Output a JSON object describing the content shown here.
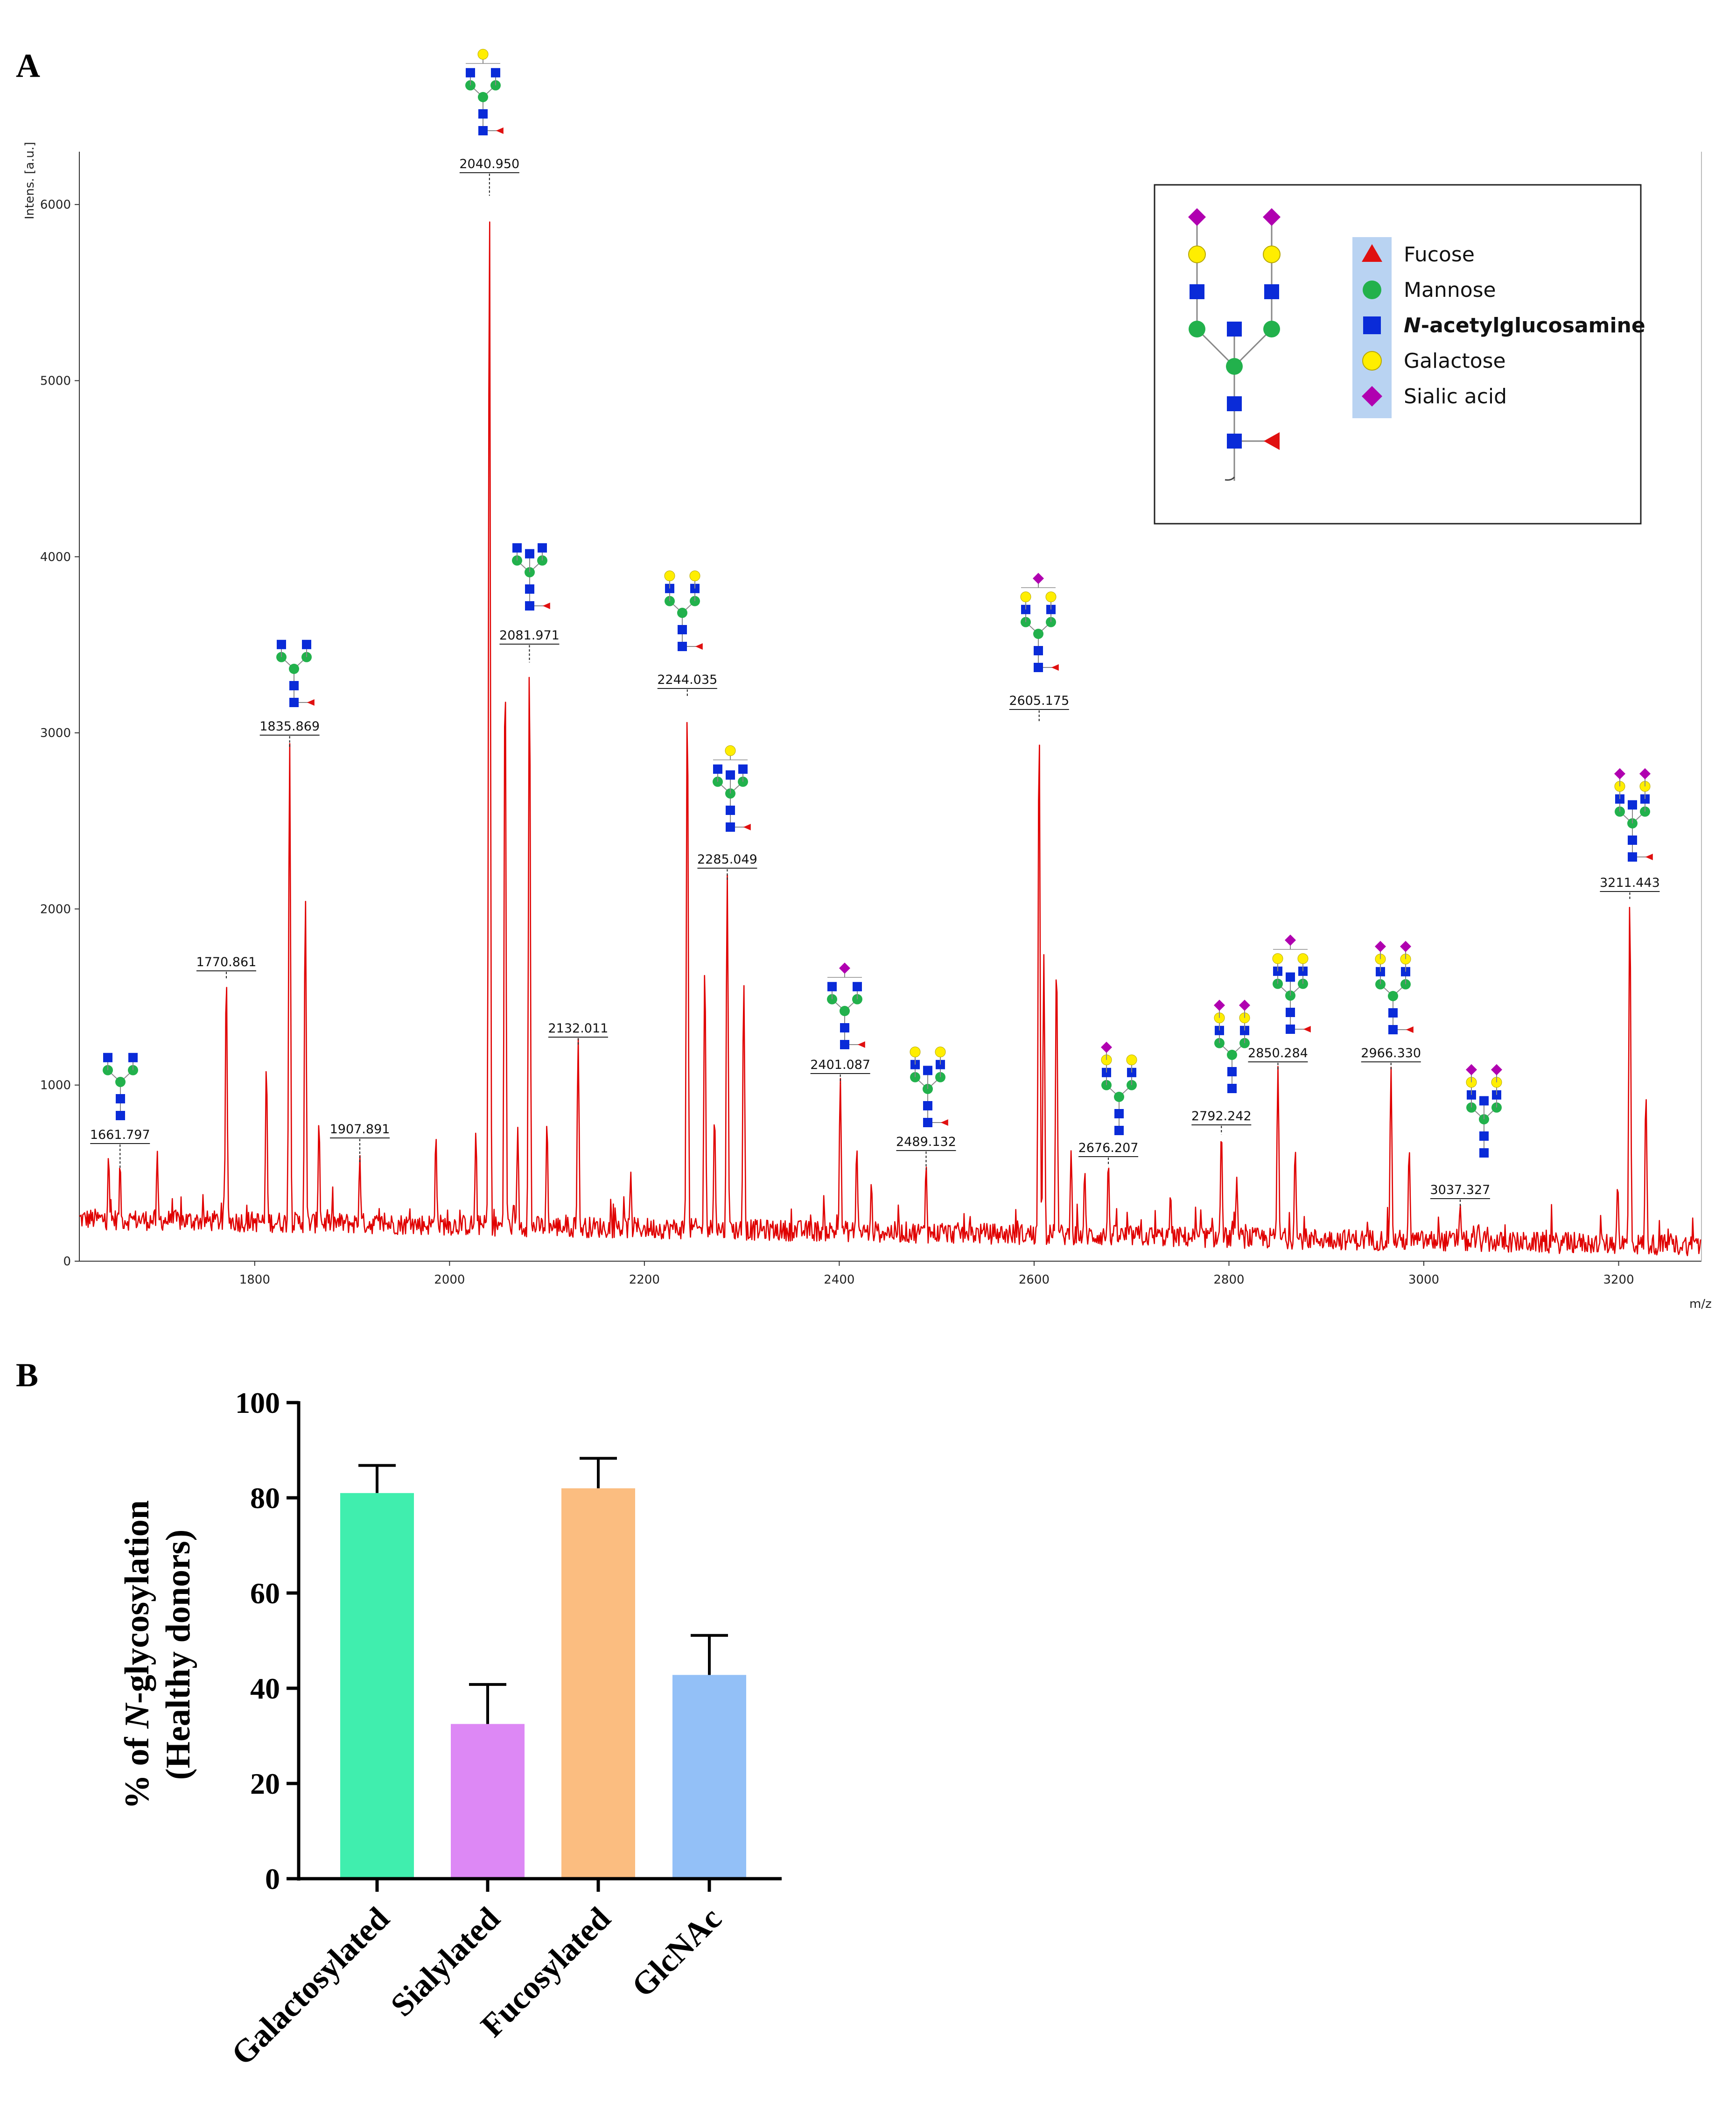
{
  "colors": {
    "spectrum": "#e00000",
    "fucose": "#e01010",
    "mannose": "#22b14c",
    "glcnac": "#0a2bd8",
    "galactose": "#ffee00",
    "sialic": "#b000b0",
    "legend_highlight": "#b9d3f2"
  },
  "chart_data": [
    {
      "id": "panel-a",
      "panel_label": "A",
      "type": "line",
      "title": "",
      "xlabel": "m/z",
      "ylabel": "Intens. [a.u.]",
      "xlim": [
        1620,
        3285
      ],
      "ylim": [
        0,
        6300
      ],
      "x_ticks": [
        1800,
        2000,
        2200,
        2400,
        2600,
        2800,
        3000,
        3200
      ],
      "y_ticks": [
        0,
        1000,
        2000,
        3000,
        4000,
        5000,
        6000
      ],
      "labeled_peaks": [
        {
          "mz": 1661.797,
          "label": "1661.797",
          "intensity": 520,
          "glycan": "G0"
        },
        {
          "mz": 1770.861,
          "label": "1770.861",
          "intensity": 1600,
          "glycan": ""
        },
        {
          "mz": 1835.869,
          "label": "1835.869",
          "intensity": 2920,
          "glycan": "G0F"
        },
        {
          "mz": 1907.891,
          "label": "1907.891",
          "intensity": 560,
          "glycan": ""
        },
        {
          "mz": 2040.95,
          "label": "2040.950",
          "intensity": 6050,
          "glycan": "G1F"
        },
        {
          "mz": 2081.971,
          "label": "2081.971",
          "intensity": 3400,
          "glycan": "G0FN"
        },
        {
          "mz": 2132.011,
          "label": "2132.011",
          "intensity": 1230,
          "glycan": ""
        },
        {
          "mz": 2244.035,
          "label": "2244.035",
          "intensity": 3200,
          "glycan": "G2F"
        },
        {
          "mz": 2285.049,
          "label": "2285.049",
          "intensity": 2160,
          "glycan": "G1FN"
        },
        {
          "mz": 2401.087,
          "label": "2401.087",
          "intensity": 1010,
          "glycan": "G1S1"
        },
        {
          "mz": 2489.132,
          "label": "2489.132",
          "intensity": 520,
          "glycan": "G2FN"
        },
        {
          "mz": 2605.175,
          "label": "2605.175",
          "intensity": 3060,
          "glycan": "G2FS1"
        },
        {
          "mz": 2676.207,
          "label": "2676.207",
          "intensity": 540,
          "glycan": "G2S1"
        },
        {
          "mz": 2792.242,
          "label": "2792.242",
          "intensity": 720,
          "glycan": "G2S2"
        },
        {
          "mz": 2850.284,
          "label": "2850.284",
          "intensity": 1080,
          "glycan": "G2FNS1"
        },
        {
          "mz": 2966.33,
          "label": "2966.330",
          "intensity": 1080,
          "glycan": "G2FS2"
        },
        {
          "mz": 3037.327,
          "label": "3037.327",
          "intensity": 300,
          "glycan": "G2S2N"
        },
        {
          "mz": 3211.443,
          "label": "3211.443",
          "intensity": 2050,
          "glycan": "G2FNS2"
        }
      ],
      "other_peaks": [
        {
          "mz": 1650,
          "intensity": 560
        },
        {
          "mz": 1700,
          "intensity": 580
        },
        {
          "mz": 1812,
          "intensity": 1080
        },
        {
          "mz": 1852,
          "intensity": 2040
        },
        {
          "mz": 1866,
          "intensity": 760
        },
        {
          "mz": 1986,
          "intensity": 680
        },
        {
          "mz": 2027,
          "intensity": 700
        },
        {
          "mz": 2057,
          "intensity": 3400
        },
        {
          "mz": 2070,
          "intensity": 720
        },
        {
          "mz": 2100,
          "intensity": 760
        },
        {
          "mz": 2186,
          "intensity": 470
        },
        {
          "mz": 2262,
          "intensity": 1660
        },
        {
          "mz": 2272,
          "intensity": 800
        },
        {
          "mz": 2302,
          "intensity": 1560
        },
        {
          "mz": 2418,
          "intensity": 620
        },
        {
          "mz": 2433,
          "intensity": 420
        },
        {
          "mz": 2610,
          "intensity": 1710
        },
        {
          "mz": 2623,
          "intensity": 1700
        },
        {
          "mz": 2638,
          "intensity": 600
        },
        {
          "mz": 2652,
          "intensity": 490
        },
        {
          "mz": 2740,
          "intensity": 360
        },
        {
          "mz": 2808,
          "intensity": 450
        },
        {
          "mz": 2868,
          "intensity": 620
        },
        {
          "mz": 2985,
          "intensity": 620
        },
        {
          "mz": 3056,
          "intensity": 200
        },
        {
          "mz": 3199,
          "intensity": 420
        },
        {
          "mz": 3228,
          "intensity": 940
        }
      ],
      "legend": {
        "items": [
          {
            "symbol": "triangle",
            "color": "#e01010",
            "label_pre": "Fucose",
            "label_italic": "",
            "label_post": ""
          },
          {
            "symbol": "circle",
            "color": "#22b14c",
            "label_pre": "Mannose",
            "label_italic": "",
            "label_post": ""
          },
          {
            "symbol": "square",
            "color": "#0a2bd8",
            "label_pre": "",
            "label_italic": "N",
            "label_post": "-acetylglucosamine"
          },
          {
            "symbol": "circle",
            "color": "#ffee00",
            "label_pre": "Galactose",
            "label_italic": "",
            "label_post": ""
          },
          {
            "symbol": "diamond",
            "color": "#b000b0",
            "label_pre": "Sialic acid",
            "label_italic": "",
            "label_post": ""
          }
        ]
      }
    },
    {
      "id": "panel-b",
      "panel_label": "B",
      "type": "bar",
      "title": "",
      "ylabel_line1_pre": "% of ",
      "ylabel_line1_italic": "N",
      "ylabel_line1_post": "-glycosylation",
      "ylabel_line2": "(Healthy donors)",
      "xlabel": "",
      "ylim": [
        0,
        100
      ],
      "y_ticks": [
        0,
        20,
        40,
        60,
        80,
        100
      ],
      "categories": [
        "Galactosylated",
        "Sialylated",
        "Fucosylated",
        "GlcNAc"
      ],
      "values": [
        81,
        32.5,
        82,
        42.8
      ],
      "errors": [
        5.8,
        8.3,
        6.3,
        8.3
      ],
      "colors": [
        "#40eeae",
        "#dd88f5",
        "#fbbd80",
        "#93c0f7"
      ]
    }
  ]
}
